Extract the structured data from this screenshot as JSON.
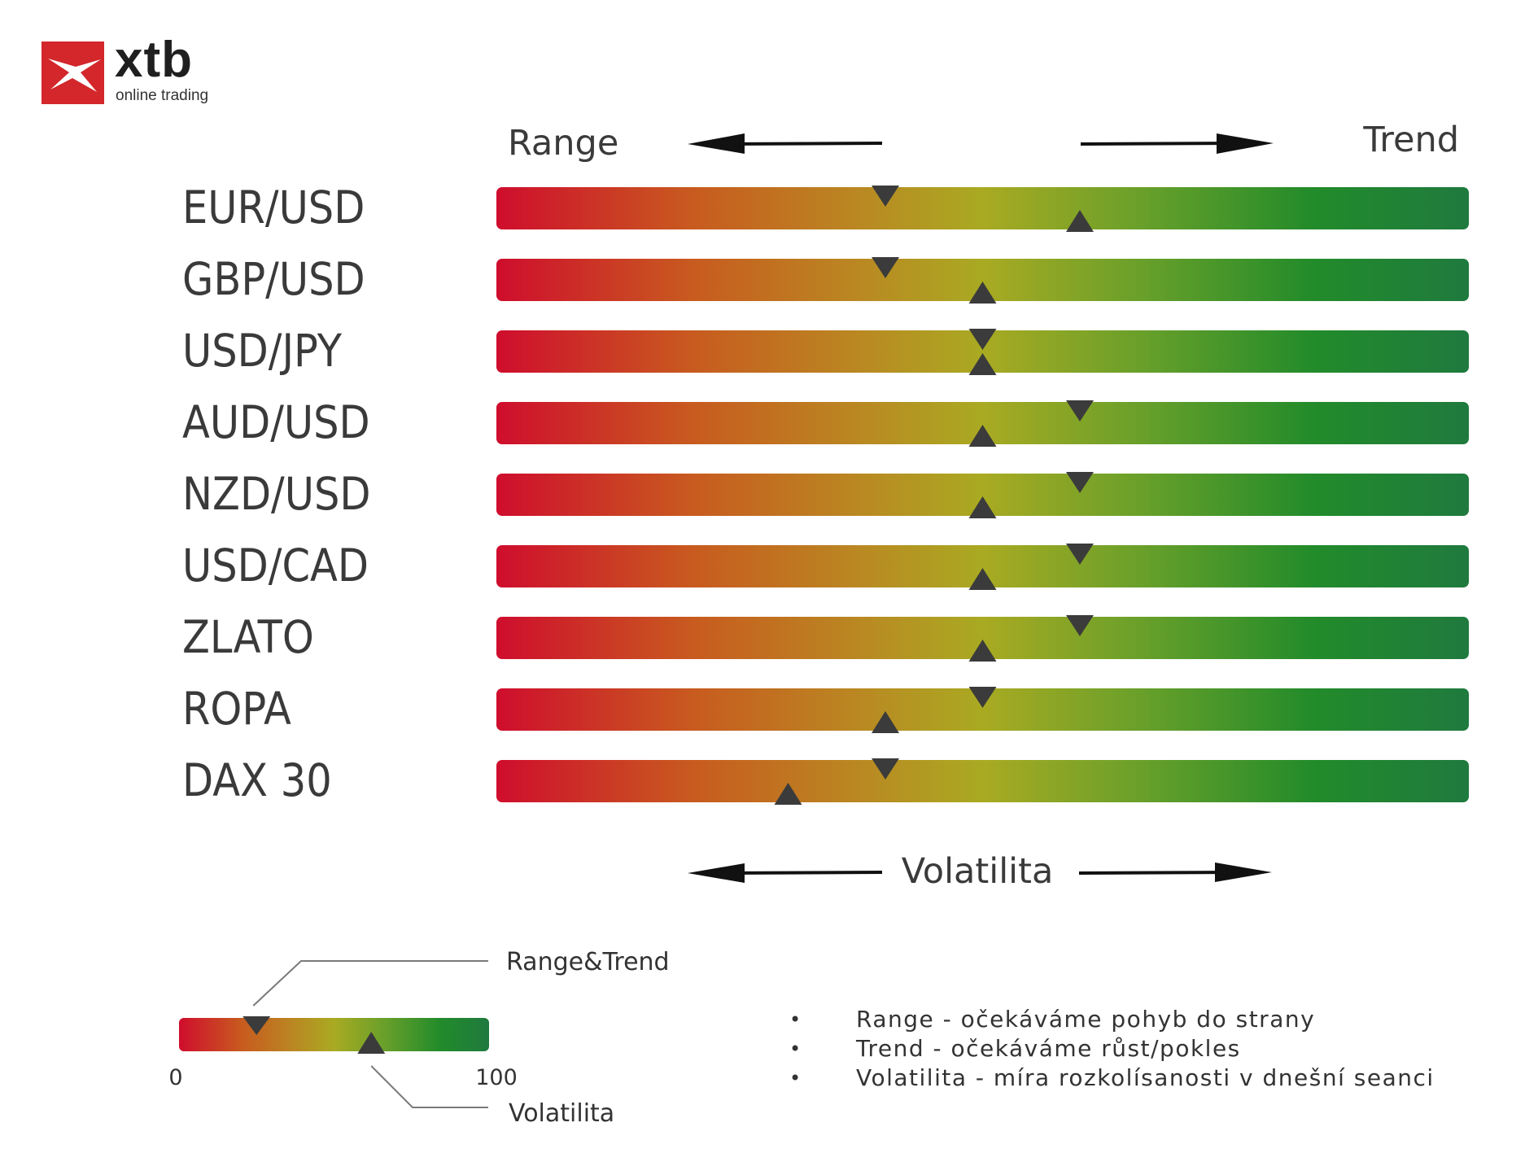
{
  "logo": {
    "wordmark": "xtb",
    "tagline": "online trading",
    "brand_color": "#d3272b",
    "icon": "xtb-x-logo-icon"
  },
  "header": {
    "left_label": "Range",
    "right_label": "Trend"
  },
  "footer_axis": {
    "label": "Volatilita"
  },
  "chart_data": {
    "type": "gauge-bars",
    "scale": [
      0,
      100
    ],
    "gradient_colors": [
      "#cf0d2d",
      "#c85a1f",
      "#b98a22",
      "#a9aa22",
      "#6aa02a",
      "#228b2a",
      "#1f7a3e"
    ],
    "markers": {
      "top": "Range&Trend (▼)",
      "bottom": "Volatilita (▲)"
    },
    "rows": [
      {
        "label": "EUR/USD",
        "range_trend": 40,
        "volatility": 60
      },
      {
        "label": "GBP/USD",
        "range_trend": 40,
        "volatility": 50
      },
      {
        "label": "USD/JPY",
        "range_trend": 50,
        "volatility": 50
      },
      {
        "label": "AUD/USD",
        "range_trend": 60,
        "volatility": 50
      },
      {
        "label": "NZD/USD",
        "range_trend": 60,
        "volatility": 50
      },
      {
        "label": "USD/CAD",
        "range_trend": 60,
        "volatility": 50
      },
      {
        "label": "ZLATO",
        "range_trend": 60,
        "volatility": 50
      },
      {
        "label": "ROPA",
        "range_trend": 50,
        "volatility": 40
      },
      {
        "label": "DAX 30",
        "range_trend": 40,
        "volatility": 30
      }
    ]
  },
  "legend": {
    "range_trend_label": "Range&Trend",
    "volatility_label": "Volatilita",
    "min_label": "0",
    "max_label": "100",
    "example_range_trend": 25,
    "example_volatility": 62
  },
  "notes": [
    "Range - očekáváme pohyb do strany",
    "Trend - očekáváme růst/pokles",
    "Volatilita - míra rozkolísanosti v dnešní seanci"
  ]
}
